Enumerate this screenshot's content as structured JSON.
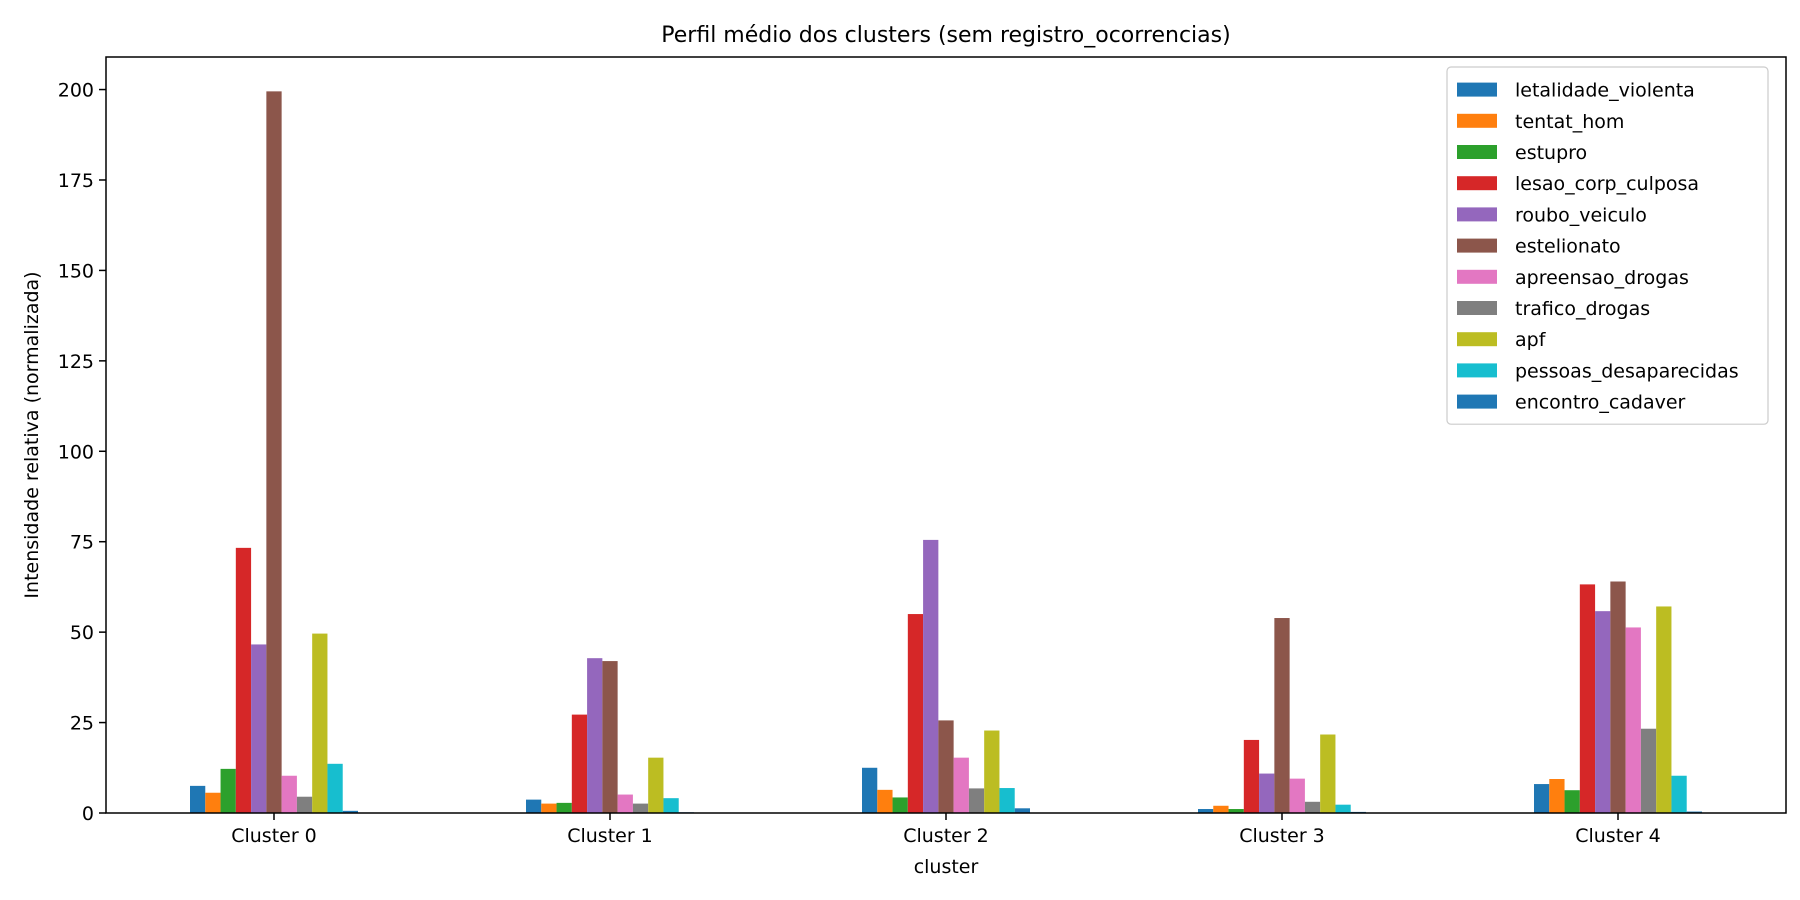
{
  "chart_data": {
    "type": "bar",
    "title": "Perfil médio dos clusters (sem registro_ocorrencias)",
    "xlabel": "cluster",
    "ylabel": "Intensidade relativa (normalizada)",
    "categories": [
      "Cluster 0",
      "Cluster 1",
      "Cluster 2",
      "Cluster 3",
      "Cluster 4"
    ],
    "ylim": [
      0,
      209
    ],
    "yticks": [
      0,
      25,
      50,
      75,
      100,
      125,
      150,
      175,
      200
    ],
    "grid": false,
    "legend_position": "top-right",
    "series": [
      {
        "name": "letalidade_violenta",
        "color": "#1f77b4",
        "values": [
          7.5,
          3.7,
          12.5,
          1.1,
          8.0
        ]
      },
      {
        "name": "tentat_hom",
        "color": "#ff7f0e",
        "values": [
          5.6,
          2.6,
          6.4,
          2.0,
          9.4
        ]
      },
      {
        "name": "estupro",
        "color": "#2ca02c",
        "values": [
          12.2,
          2.8,
          4.3,
          1.1,
          6.3
        ]
      },
      {
        "name": "lesao_corp_culposa",
        "color": "#d62728",
        "values": [
          73.3,
          27.2,
          55.0,
          20.2,
          63.2
        ]
      },
      {
        "name": "roubo_veiculo",
        "color": "#9467bd",
        "values": [
          46.6,
          42.8,
          75.5,
          10.9,
          55.8
        ]
      },
      {
        "name": "estelionato",
        "color": "#8c564b",
        "values": [
          199.5,
          42.0,
          25.6,
          53.9,
          64.0
        ]
      },
      {
        "name": "apreensao_drogas",
        "color": "#e377c2",
        "values": [
          10.3,
          5.1,
          15.3,
          9.5,
          51.3
        ]
      },
      {
        "name": "trafico_drogas",
        "color": "#7f7f7f",
        "values": [
          4.5,
          2.6,
          6.8,
          3.1,
          23.3
        ]
      },
      {
        "name": "apf",
        "color": "#bcbd22",
        "values": [
          49.6,
          15.3,
          22.8,
          21.7,
          57.1
        ]
      },
      {
        "name": "pessoas_desaparecidas",
        "color": "#17becf",
        "values": [
          13.6,
          4.1,
          6.9,
          2.3,
          10.3
        ]
      },
      {
        "name": "encontro_cadaver",
        "color": "#1f77b4",
        "values": [
          0.6,
          0.2,
          1.3,
          0.3,
          0.4
        ]
      }
    ]
  }
}
